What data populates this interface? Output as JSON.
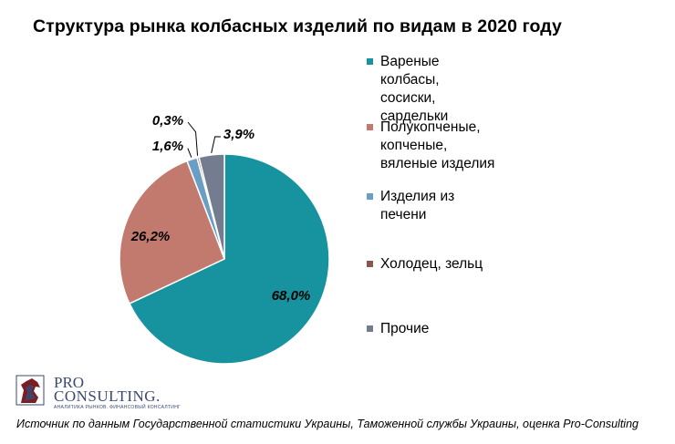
{
  "title": "Структура рынка колбасных изделий по видам в 2020 году",
  "chart_data": {
    "type": "pie",
    "title": "Структура рынка колбасных изделий по видам в 2020 году",
    "series": [
      {
        "name": "Вареные колбасы, сосиски, сардельки",
        "label": "Вареные\nколбасы,\nсосиски,\nсардельки",
        "value": 68.0,
        "value_label": "68,0%",
        "color": "#16939e"
      },
      {
        "name": "Полукопченые, копченые, вяленые изделия",
        "label": "Полукопченые,\nкопченые,\nвяленые изделия",
        "value": 26.2,
        "value_label": "26,2%",
        "color": "#c27a6e"
      },
      {
        "name": "Изделия из печени",
        "label": "Изделия из\nпечени",
        "value": 1.6,
        "value_label": "1,6%",
        "color": "#6a9ec5"
      },
      {
        "name": "Холодец, зельц",
        "label": "Холодец, зельц",
        "value": 0.3,
        "value_label": "0,3%",
        "color": "#8c5650"
      },
      {
        "name": "Прочие",
        "label": "Прочие",
        "value": 3.9,
        "value_label": "3,9%",
        "color": "#747d8f"
      }
    ],
    "legend_position": "right"
  },
  "logo": {
    "line1": "PRO",
    "line2": "CONSULTING.",
    "tagline": "АНАЛИТИКА РЫНКОВ. ФИНАНСОВЫЙ КОНСАЛТИНГ"
  },
  "source": "Источник по данным Государственной статистики Украины, Таможенной службы Украины, оценка Pro-Consulting"
}
